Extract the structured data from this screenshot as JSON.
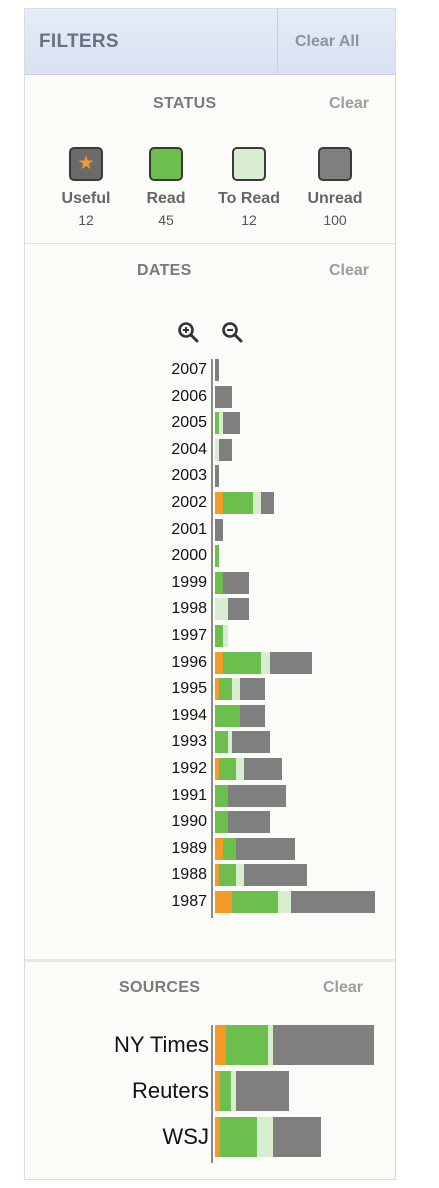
{
  "filters": {
    "title": "FILTERS",
    "clear_all": "Clear All"
  },
  "colors": {
    "useful": "#f39a2a",
    "read": "#6cbf4c",
    "to_read": "#d8ecd0",
    "unread": "#7f7f7f"
  },
  "status": {
    "title": "STATUS",
    "clear": "Clear",
    "items": [
      {
        "label": "Useful",
        "count": "12",
        "color": "#6b6b6b",
        "icon": "star-icon"
      },
      {
        "label": "Read",
        "count": "45",
        "color": "#6cbf4c"
      },
      {
        "label": "To Read",
        "count": "12",
        "color": "#d8ecd0"
      },
      {
        "label": "Unread",
        "count": "100",
        "color": "#7f7f7f"
      }
    ]
  },
  "dates": {
    "title": "DATES",
    "clear": "Clear",
    "zoom_in_icon": "zoom-in-icon",
    "zoom_out_icon": "zoom-out-icon",
    "rows": [
      {
        "year": "2007",
        "useful": 0,
        "read": 0,
        "to_read": 0,
        "unread": 1
      },
      {
        "year": "2006",
        "useful": 0,
        "read": 0,
        "to_read": 0,
        "unread": 4
      },
      {
        "year": "2005",
        "useful": 0,
        "read": 1,
        "to_read": 1,
        "unread": 4
      },
      {
        "year": "2004",
        "useful": 0,
        "read": 0,
        "to_read": 1,
        "unread": 3
      },
      {
        "year": "2003",
        "useful": 0,
        "read": 0,
        "to_read": 0,
        "unread": 1
      },
      {
        "year": "2002",
        "useful": 2,
        "read": 7,
        "to_read": 2,
        "unread": 3
      },
      {
        "year": "2001",
        "useful": 0,
        "read": 0,
        "to_read": 0,
        "unread": 2
      },
      {
        "year": "2000",
        "useful": 0,
        "read": 1,
        "to_read": 0,
        "unread": 0
      },
      {
        "year": "1999",
        "useful": 0,
        "read": 2,
        "to_read": 0,
        "unread": 6
      },
      {
        "year": "1998",
        "useful": 0,
        "read": 0,
        "to_read": 3,
        "unread": 5
      },
      {
        "year": "1997",
        "useful": 0,
        "read": 2,
        "to_read": 1,
        "unread": 0
      },
      {
        "year": "1996",
        "useful": 2,
        "read": 9,
        "to_read": 2,
        "unread": 10
      },
      {
        "year": "1995",
        "useful": 1,
        "read": 3,
        "to_read": 2,
        "unread": 6
      },
      {
        "year": "1994",
        "useful": 0,
        "read": 6,
        "to_read": 0,
        "unread": 6
      },
      {
        "year": "1993",
        "useful": 0,
        "read": 3,
        "to_read": 1,
        "unread": 9
      },
      {
        "year": "1992",
        "useful": 1,
        "read": 4,
        "to_read": 2,
        "unread": 9
      },
      {
        "year": "1991",
        "useful": 0,
        "read": 3,
        "to_read": 0,
        "unread": 14
      },
      {
        "year": "1990",
        "useful": 0,
        "read": 3,
        "to_read": 0,
        "unread": 10
      },
      {
        "year": "1989",
        "useful": 2,
        "read": 3,
        "to_read": 0,
        "unread": 14
      },
      {
        "year": "1988",
        "useful": 1,
        "read": 4,
        "to_read": 2,
        "unread": 15
      },
      {
        "year": "1987",
        "useful": 4,
        "read": 11,
        "to_read": 3,
        "unread": 20
      }
    ]
  },
  "sources": {
    "title": "SOURCES",
    "clear": "Clear",
    "rows": [
      {
        "name": "NY Times",
        "useful": 2,
        "read": 8,
        "to_read": 1,
        "unread": 19
      },
      {
        "name": "Reuters",
        "useful": 1,
        "read": 2,
        "to_read": 1,
        "unread": 10
      },
      {
        "name": "WSJ",
        "useful": 1,
        "read": 7,
        "to_read": 3,
        "unread": 9
      }
    ]
  }
}
